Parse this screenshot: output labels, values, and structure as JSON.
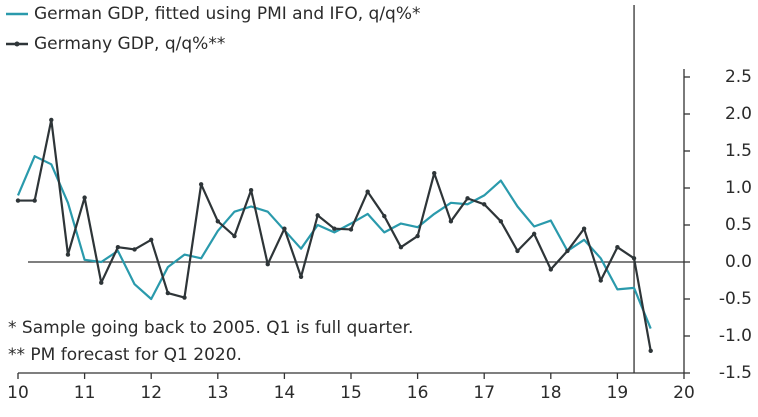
{
  "chart_data": {
    "type": "line",
    "legend": "top-left",
    "notes": [
      "* Sample going back to 2005. Q1 is full quarter.",
      "** PM forecast for Q1 2020."
    ],
    "x": [
      10,
      10.25,
      10.5,
      10.75,
      11,
      11.25,
      11.5,
      11.75,
      12,
      12.25,
      12.5,
      12.75,
      13,
      13.25,
      13.5,
      13.75,
      14,
      14.25,
      14.5,
      14.75,
      15,
      15.25,
      15.5,
      15.75,
      16,
      16.25,
      16.5,
      16.75,
      17,
      17.25,
      17.5,
      17.75,
      18,
      18.25,
      18.5,
      18.75,
      19,
      19.25,
      19.5
    ],
    "series": [
      {
        "name": "German GDP, fitted using PMI and IFO, q/q%*",
        "color": "#2a9aac",
        "values": [
          0.9,
          1.43,
          1.32,
          0.8,
          0.03,
          0.0,
          0.15,
          -0.3,
          -0.5,
          -0.07,
          0.1,
          0.05,
          0.42,
          0.68,
          0.75,
          0.68,
          0.43,
          0.18,
          0.5,
          0.4,
          0.52,
          0.65,
          0.4,
          0.52,
          0.47,
          0.65,
          0.8,
          0.78,
          0.9,
          1.1,
          0.75,
          0.48,
          0.56,
          0.15,
          0.3,
          0.05,
          -0.37,
          -0.35,
          -0.9
        ]
      },
      {
        "name": "Germany GDP, q/q%**",
        "color": "#2e3538",
        "markers": true,
        "values": [
          0.83,
          0.83,
          1.92,
          0.1,
          0.87,
          -0.28,
          0.2,
          0.17,
          0.3,
          -0.42,
          -0.48,
          1.05,
          0.55,
          0.35,
          0.97,
          -0.03,
          0.45,
          -0.2,
          0.63,
          0.45,
          0.44,
          0.95,
          0.62,
          0.2,
          0.35,
          1.2,
          0.55,
          0.86,
          0.78,
          0.55,
          0.15,
          0.38,
          -0.1,
          0.15,
          0.45,
          -0.25,
          0.2,
          0.05,
          -1.2
        ]
      }
    ],
    "forecast_line_x": 19.25,
    "xlim": [
      10,
      20
    ],
    "xticks": [
      10,
      11,
      12,
      13,
      14,
      15,
      16,
      17,
      18,
      19,
      20
    ],
    "ylim": [
      -1.5,
      2.5
    ],
    "yticks": [
      2.5,
      {
        "value": 2,
        "label": "2.0"
      },
      1.5,
      {
        "value": 1,
        "label": "1.0"
      },
      0.5,
      {
        "value": 0,
        "label": "0.0"
      },
      -0.5,
      {
        "value": -1,
        "label": "-1.0"
      },
      -1.5
    ]
  }
}
